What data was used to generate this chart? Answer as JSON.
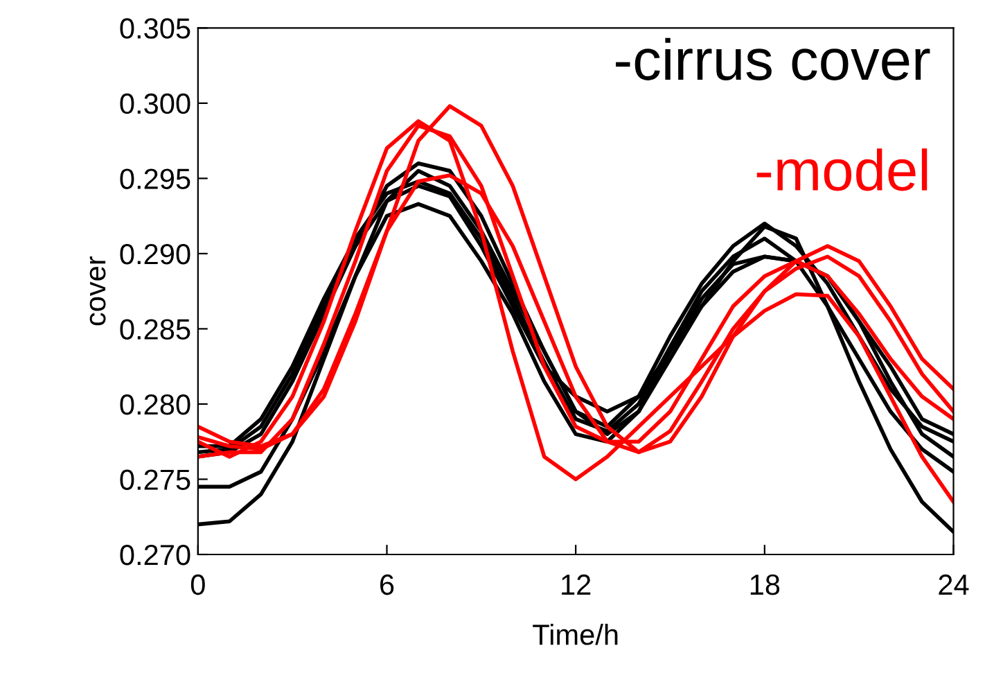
{
  "chart_data": {
    "type": "line",
    "xlabel": "Time/h",
    "ylabel": "cover",
    "x": [
      0,
      1,
      2,
      3,
      4,
      5,
      6,
      7,
      8,
      9,
      10,
      11,
      12,
      13,
      14,
      15,
      16,
      17,
      18,
      19,
      20,
      21,
      22,
      23,
      24
    ],
    "xlim": [
      0,
      24
    ],
    "xticks": [
      0,
      6,
      12,
      18,
      24
    ],
    "ylim": [
      0.27,
      0.305
    ],
    "yticks": [
      {
        "value": 0.27,
        "label": "0.270"
      },
      {
        "value": 0.275,
        "label": "0.275"
      },
      {
        "value": 0.28,
        "label": "0.280"
      },
      {
        "value": 0.285,
        "label": "0.285"
      },
      {
        "value": 0.29,
        "label": "0.290"
      },
      {
        "value": 0.295,
        "label": "0.295"
      },
      {
        "value": 0.3,
        "label": "0.300"
      },
      {
        "value": 0.305,
        "label": "0.305"
      }
    ],
    "grid": false,
    "legend": false,
    "marker": "none",
    "line_style": "solid",
    "series": [
      {
        "name": "-cirrus cover",
        "color": "#000000",
        "values": [
          0.272,
          0.2722,
          0.274,
          0.2775,
          0.283,
          0.2885,
          0.2935,
          0.2955,
          0.2945,
          0.2915,
          0.2875,
          0.2835,
          0.2795,
          0.278,
          0.2795,
          0.283,
          0.2865,
          0.2895,
          0.2918,
          0.291,
          0.2865,
          0.2815,
          0.277,
          0.2735,
          0.2715
        ]
      },
      {
        "color": "#000000",
        "values": [
          0.2745,
          0.2745,
          0.2755,
          0.279,
          0.2835,
          0.2885,
          0.2925,
          0.2933,
          0.2925,
          0.2895,
          0.286,
          0.2815,
          0.278,
          0.2775,
          0.2795,
          0.2835,
          0.287,
          0.2893,
          0.2898,
          0.2895,
          0.2885,
          0.2855,
          0.2815,
          0.278,
          0.2765
        ]
      },
      {
        "color": "#000000",
        "values": [
          0.2765,
          0.2768,
          0.278,
          0.2815,
          0.286,
          0.2905,
          0.2945,
          0.296,
          0.2955,
          0.2925,
          0.288,
          0.2835,
          0.2795,
          0.2785,
          0.2805,
          0.2845,
          0.288,
          0.2905,
          0.292,
          0.2905,
          0.288,
          0.2845,
          0.281,
          0.2785,
          0.2775
        ]
      },
      {
        "color": "#000000",
        "values": [
          0.2768,
          0.277,
          0.2785,
          0.282,
          0.2865,
          0.2905,
          0.2935,
          0.2945,
          0.2938,
          0.2905,
          0.2865,
          0.2825,
          0.2805,
          0.2795,
          0.2805,
          0.2835,
          0.2865,
          0.2888,
          0.2898,
          0.2895,
          0.2885,
          0.2855,
          0.2825,
          0.279,
          0.278
        ]
      },
      {
        "color": "#000000",
        "values": [
          0.2772,
          0.2772,
          0.279,
          0.2825,
          0.287,
          0.291,
          0.294,
          0.2948,
          0.294,
          0.291,
          0.287,
          0.2828,
          0.279,
          0.2782,
          0.28,
          0.2838,
          0.2875,
          0.2898,
          0.291,
          0.2895,
          0.2865,
          0.283,
          0.2795,
          0.277,
          0.2755
        ]
      },
      {
        "name": "-model",
        "color": "#ff0000",
        "values": [
          0.2785,
          0.2775,
          0.2772,
          0.278,
          0.2805,
          0.2855,
          0.2915,
          0.2975,
          0.2998,
          0.2985,
          0.2945,
          0.2885,
          0.2825,
          0.2785,
          0.2768,
          0.2775,
          0.2805,
          0.2845,
          0.2875,
          0.2895,
          0.2905,
          0.2895,
          0.2865,
          0.283,
          0.281
        ]
      },
      {
        "color": "#ff0000",
        "values": [
          0.2775,
          0.2765,
          0.2775,
          0.2805,
          0.2855,
          0.2915,
          0.297,
          0.2988,
          0.2975,
          0.2915,
          0.2835,
          0.2765,
          0.275,
          0.2765,
          0.2785,
          0.2805,
          0.2825,
          0.2845,
          0.2862,
          0.2873,
          0.2872,
          0.2845,
          0.2805,
          0.2765,
          0.2735
        ]
      },
      {
        "color": "#ff0000",
        "values": [
          0.2765,
          0.2768,
          0.2768,
          0.279,
          0.284,
          0.2895,
          0.2955,
          0.2985,
          0.2978,
          0.2945,
          0.2885,
          0.2825,
          0.2785,
          0.2775,
          0.2775,
          0.2795,
          0.283,
          0.2865,
          0.2885,
          0.2895,
          0.2885,
          0.286,
          0.283,
          0.2805,
          0.279
        ]
      },
      {
        "color": "#ff0000",
        "values": [
          0.2778,
          0.2772,
          0.277,
          0.278,
          0.281,
          0.286,
          0.2915,
          0.2948,
          0.2952,
          0.294,
          0.2905,
          0.2855,
          0.2805,
          0.2775,
          0.2768,
          0.2782,
          0.2815,
          0.285,
          0.2875,
          0.289,
          0.2898,
          0.2885,
          0.2855,
          0.282,
          0.2795
        ]
      }
    ]
  }
}
